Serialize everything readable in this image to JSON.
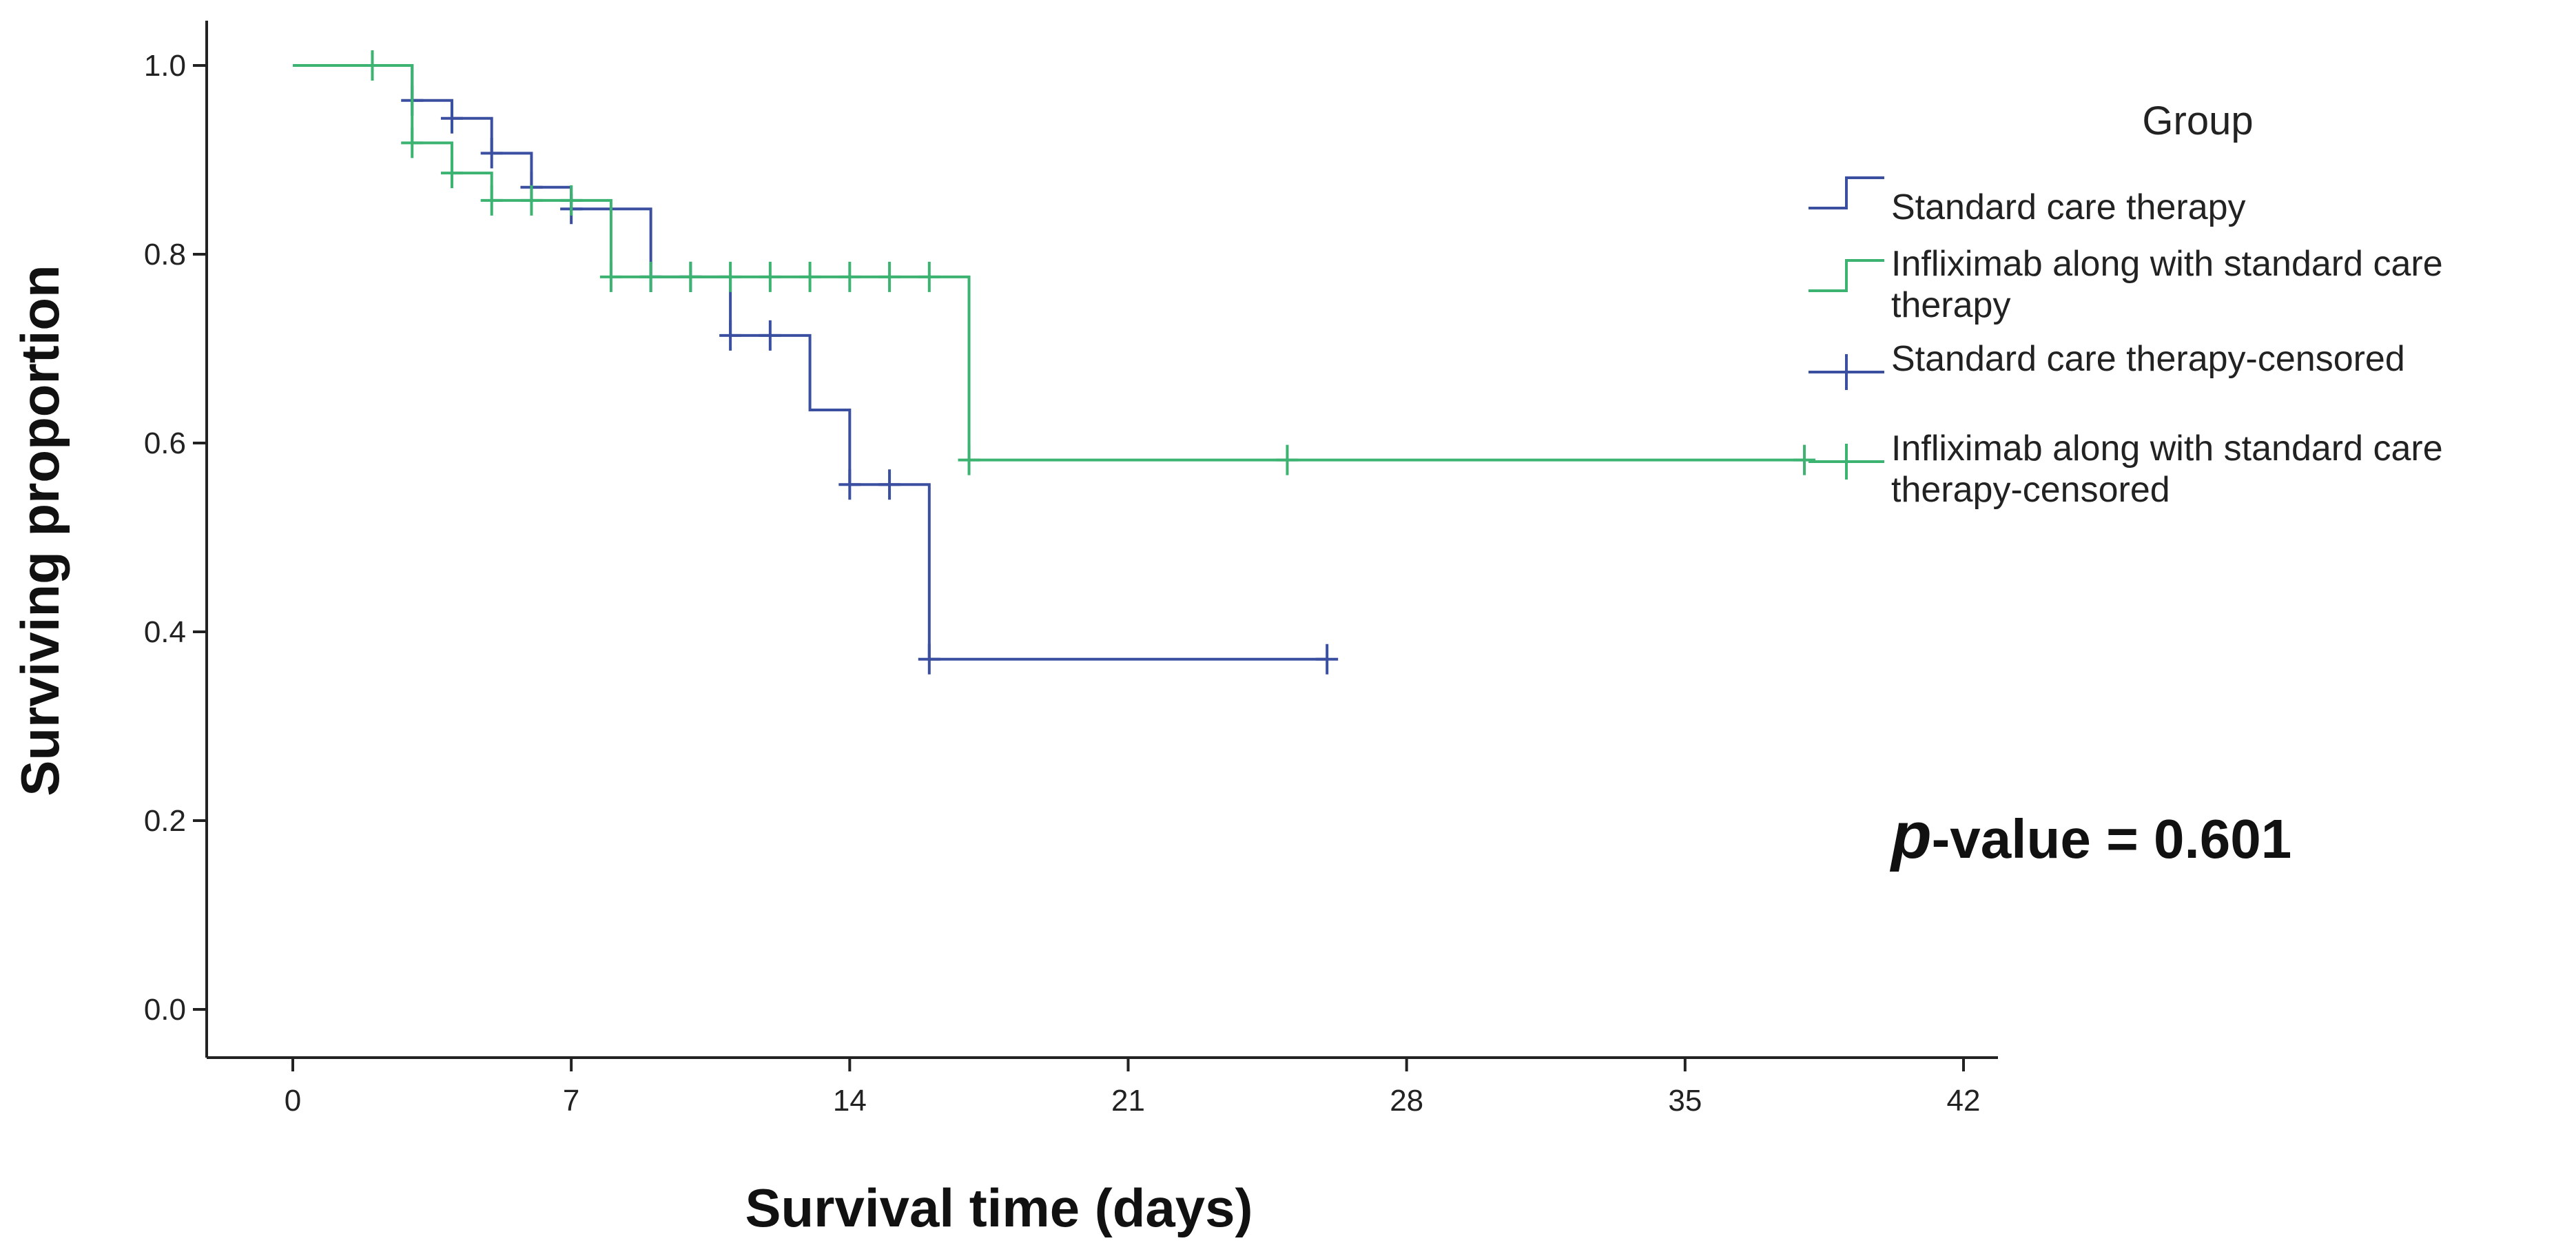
{
  "chart_data": {
    "type": "line",
    "subtype": "kaplan-meier",
    "xlabel": "Survival time (days)",
    "ylabel": "Surviving proportion",
    "xlim": [
      0,
      42
    ],
    "ylim": [
      0,
      1
    ],
    "x_ticks": [
      0,
      7,
      14,
      21,
      28,
      35,
      42
    ],
    "y_ticks": [
      0.0,
      0.2,
      0.4,
      0.6,
      0.8,
      1.0
    ],
    "x_tick_labels": [
      "0",
      "7",
      "14",
      "21",
      "28",
      "35",
      "42"
    ],
    "y_tick_labels": [
      "0.0",
      "0.2",
      "0.4",
      "0.6",
      "0.8",
      "1.0"
    ],
    "legend_title": "Group",
    "legend_position": "top-right",
    "legend": [
      {
        "label": "Standard care therapy",
        "kind": "step",
        "series": 0
      },
      {
        "label": "Infliximab along with standard care therapy",
        "kind": "step",
        "series": 1
      },
      {
        "label": "Standard care therapy-censored",
        "kind": "censor",
        "series": 0
      },
      {
        "label": "Infliximab along with standard care therapy-censored",
        "kind": "censor",
        "series": 1
      }
    ],
    "annotation": {
      "italic": "p",
      "rest": "-value = 0.601"
    },
    "series": [
      {
        "name": "Standard care therapy",
        "color": "#3a4fa0",
        "steps": [
          [
            0,
            1.0
          ],
          [
            3,
            0.963
          ],
          [
            4,
            0.944
          ],
          [
            5,
            0.907
          ],
          [
            6,
            0.871
          ],
          [
            7,
            0.848
          ],
          [
            9,
            0.776
          ],
          [
            11,
            0.714
          ],
          [
            13,
            0.635
          ],
          [
            14,
            0.556
          ],
          [
            16,
            0.371
          ]
        ],
        "end_x": 26,
        "censored": [
          [
            3,
            0.963
          ],
          [
            4,
            0.944
          ],
          [
            5,
            0.907
          ],
          [
            6,
            0.871
          ],
          [
            7,
            0.848
          ],
          [
            9,
            0.776
          ],
          [
            10,
            0.776
          ],
          [
            11,
            0.714
          ],
          [
            12,
            0.714
          ],
          [
            14,
            0.556
          ],
          [
            15,
            0.556
          ],
          [
            16,
            0.371
          ],
          [
            26,
            0.371
          ]
        ]
      },
      {
        "name": "Infliximab along with standard care therapy",
        "color": "#3cb371",
        "steps": [
          [
            0,
            1.0
          ],
          [
            3,
            0.918
          ],
          [
            4,
            0.886
          ],
          [
            5,
            0.857
          ],
          [
            8,
            0.776
          ],
          [
            17,
            0.582
          ]
        ],
        "end_x": 38,
        "censored": [
          [
            2,
            1.0
          ],
          [
            3,
            0.918
          ],
          [
            4,
            0.886
          ],
          [
            5,
            0.857
          ],
          [
            6,
            0.857
          ],
          [
            7,
            0.857
          ],
          [
            8,
            0.776
          ],
          [
            9,
            0.776
          ],
          [
            10,
            0.776
          ],
          [
            11,
            0.776
          ],
          [
            12,
            0.776
          ],
          [
            13,
            0.776
          ],
          [
            14,
            0.776
          ],
          [
            15,
            0.776
          ],
          [
            16,
            0.776
          ],
          [
            17,
            0.582
          ],
          [
            25,
            0.582
          ],
          [
            38,
            0.582
          ]
        ]
      }
    ]
  }
}
